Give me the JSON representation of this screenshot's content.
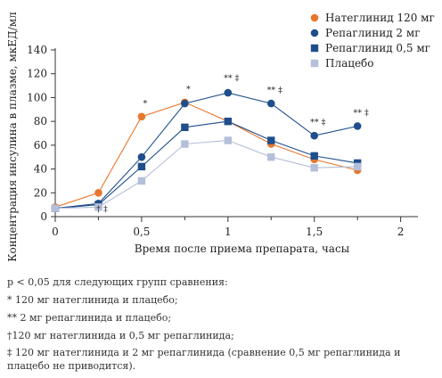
{
  "chart_data": {
    "type": "line",
    "xlabel": "Время после приема препарата, часы",
    "ylabel": "Концентрация инсулина в плазме, мкЕД/мл",
    "xlim": [
      0,
      2.1
    ],
    "ylim": [
      0,
      140
    ],
    "x_ticks": [
      {
        "value": 0,
        "label": "0"
      },
      {
        "value": 0.5,
        "label": "0,5"
      },
      {
        "value": 1,
        "label": "1"
      },
      {
        "value": 1.5,
        "label": "1,5"
      },
      {
        "value": 2,
        "label": "2"
      }
    ],
    "x_minor_ticks": [
      0.25,
      0.75,
      1.25,
      1.75
    ],
    "y_ticks": [
      0,
      20,
      40,
      60,
      80,
      100,
      120,
      140
    ],
    "x": [
      0,
      0.25,
      0.5,
      0.75,
      1,
      1.25,
      1.5,
      1.75
    ],
    "series": [
      {
        "name": "Натеглинид 120 мг",
        "color": "#e8772e",
        "marker": "circle",
        "values": [
          8,
          20,
          84,
          96,
          80,
          61,
          48,
          39
        ]
      },
      {
        "name": "Репаглинид 2 мг",
        "color": "#1f4e8c",
        "marker": "circle",
        "values": [
          7,
          11,
          50,
          95,
          104,
          95,
          68,
          76
        ]
      },
      {
        "name": "Репаглинид 0,5 мг",
        "color": "#1f4e8c",
        "marker": "square",
        "values": [
          7,
          10,
          42,
          75,
          80,
          64,
          51,
          45
        ]
      },
      {
        "name": "Плацебо",
        "color": "#b4bfd9",
        "marker": "square",
        "values": [
          7,
          8,
          30,
          61,
          64,
          50,
          41,
          42
        ]
      }
    ],
    "annotations": [
      {
        "x": 0.25,
        "y": 4,
        "text": "† ‡"
      },
      {
        "x": 0.5,
        "y": 93,
        "text": "*"
      },
      {
        "x": 0.75,
        "y": 105,
        "text": "*"
      },
      {
        "x": 1,
        "y": 114,
        "text": "** ‡"
      },
      {
        "x": 1.25,
        "y": 104,
        "text": "** ‡"
      },
      {
        "x": 1.5,
        "y": 77,
        "text": "** ‡"
      },
      {
        "x": 1.75,
        "y": 85,
        "text": "** ‡"
      }
    ],
    "legend_position": "top-right",
    "grid": false
  },
  "notes": {
    "header": "p < 0,05 для следующих групп сравнения:",
    "items": [
      "* 120 мг натеглинида и плацебо;",
      "** 2 мг репаглинида и плацебо;",
      "†120 мг натеглинида и 0,5 мг репаглинида;",
      "‡ 120 мг натеглинида и 2 мг репаглинида (сравнение 0,5 мг репаглинида и плацебо не приводится)."
    ]
  }
}
